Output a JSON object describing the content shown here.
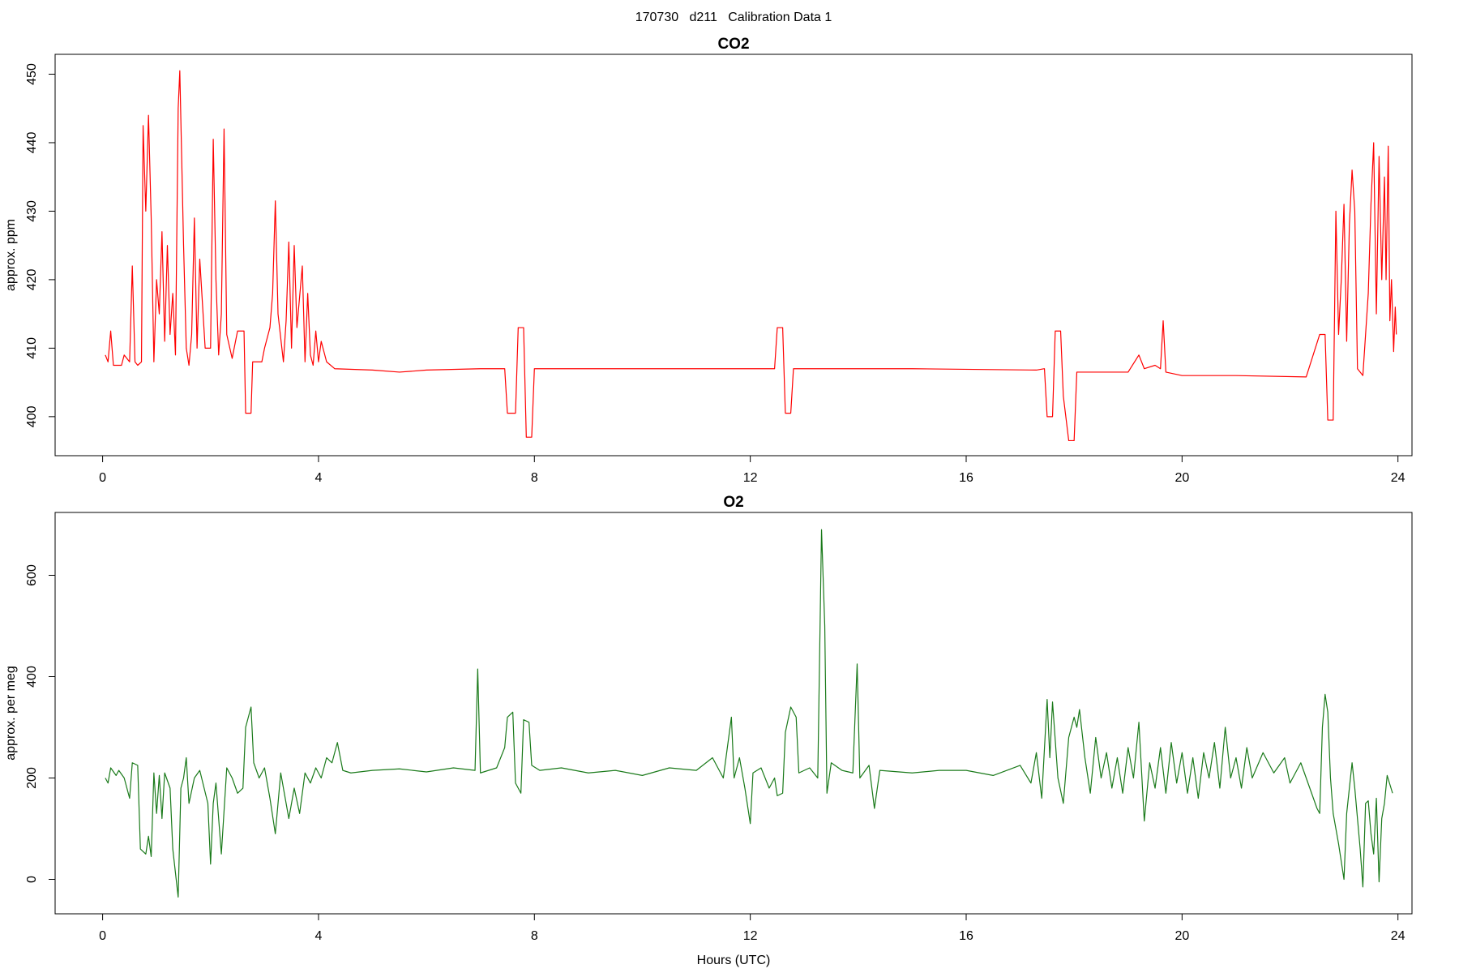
{
  "title": "170730   d211   Calibration Data 1",
  "chart_data": [
    {
      "type": "line",
      "title": "CO2",
      "ylabel": "approx. ppm",
      "color": "#ff0000",
      "xlim": [
        -0.88,
        24.26
      ],
      "xticks": [
        0,
        4,
        8,
        12,
        16,
        20,
        24
      ],
      "ylim": [
        394.3,
        452.9
      ],
      "yticks": [
        400,
        410,
        420,
        430,
        440,
        450
      ],
      "x": [
        0.05,
        0.1,
        0.15,
        0.2,
        0.35,
        0.4,
        0.5,
        0.55,
        0.6,
        0.65,
        0.72,
        0.75,
        0.8,
        0.85,
        0.9,
        0.95,
        1.0,
        1.05,
        1.1,
        1.15,
        1.2,
        1.25,
        1.3,
        1.35,
        1.4,
        1.43,
        1.5,
        1.55,
        1.6,
        1.65,
        1.7,
        1.75,
        1.8,
        1.9,
        2.0,
        2.05,
        2.1,
        2.15,
        2.2,
        2.25,
        2.3,
        2.4,
        2.5,
        2.62,
        2.65,
        2.75,
        2.78,
        2.95,
        3.0,
        3.1,
        3.15,
        3.2,
        3.25,
        3.35,
        3.4,
        3.45,
        3.5,
        3.55,
        3.6,
        3.7,
        3.75,
        3.8,
        3.85,
        3.9,
        3.95,
        4.0,
        4.05,
        4.15,
        4.3,
        5.0,
        5.5,
        6.0,
        7.0,
        7.45,
        7.5,
        7.65,
        7.7,
        7.8,
        7.85,
        7.95,
        8.0,
        10,
        12.45,
        12.5,
        12.6,
        12.65,
        12.75,
        12.8,
        15,
        17.3,
        17.45,
        17.5,
        17.6,
        17.65,
        17.75,
        17.8,
        17.9,
        18.0,
        18.05,
        19.0,
        19.2,
        19.3,
        19.5,
        19.6,
        19.65,
        19.7,
        20,
        21,
        22.3,
        22.55,
        22.65,
        22.7,
        22.8,
        22.85,
        22.9,
        22.95,
        23.0,
        23.05,
        23.1,
        23.15,
        23.2,
        23.25,
        23.35,
        23.45,
        23.5,
        23.55,
        23.6,
        23.65,
        23.7,
        23.75,
        23.78,
        23.82,
        23.85,
        23.88,
        23.92,
        23.95,
        23.97
      ],
      "values": [
        409,
        408,
        412.5,
        407.5,
        407.5,
        409,
        408,
        422,
        408,
        407.5,
        408,
        442.5,
        430,
        444,
        429,
        408,
        420,
        415,
        427,
        411,
        425,
        412,
        418,
        409,
        445,
        450.5,
        425,
        410,
        407.5,
        412,
        429,
        410,
        423,
        410,
        410,
        440.5,
        420,
        409,
        415,
        442,
        412,
        408.5,
        412.5,
        412.5,
        400.5,
        400.5,
        408,
        408,
        410,
        413,
        418,
        431.5,
        415,
        408,
        414,
        425.5,
        410,
        425,
        413,
        422,
        408,
        418,
        409,
        407.5,
        412.5,
        408,
        411,
        408,
        407,
        406.8,
        406.5,
        406.8,
        407,
        407,
        400.5,
        400.5,
        413,
        413,
        397,
        397,
        407,
        407,
        407,
        413,
        413,
        400.5,
        400.5,
        407,
        407,
        406.8,
        407,
        400,
        400,
        412.5,
        412.5,
        403,
        396.5,
        396.5,
        406.5,
        406.5,
        409,
        407,
        407.5,
        407,
        414,
        406.5,
        406,
        406,
        405.8,
        412,
        412,
        399.5,
        399.5,
        430,
        412,
        420,
        431,
        411,
        428,
        436,
        430,
        407,
        406,
        418,
        431,
        440,
        415,
        438,
        420,
        435,
        420,
        439.5,
        414,
        420,
        409.5,
        416,
        412
      ]
    },
    {
      "type": "line",
      "title": "O2",
      "ylabel": "approx. per meg",
      "xlabel": "Hours (UTC)",
      "color": "#1a7a1a",
      "xlim": [
        -0.88,
        24.26
      ],
      "xticks": [
        0,
        4,
        8,
        12,
        16,
        20,
        24
      ],
      "ylim": [
        -68,
        724
      ],
      "yticks": [
        0,
        200,
        400,
        600
      ],
      "x": [
        0.05,
        0.1,
        0.15,
        0.25,
        0.3,
        0.4,
        0.5,
        0.55,
        0.65,
        0.7,
        0.8,
        0.85,
        0.9,
        0.95,
        1.0,
        1.05,
        1.1,
        1.15,
        1.25,
        1.3,
        1.4,
        1.45,
        1.5,
        1.55,
        1.6,
        1.7,
        1.8,
        1.95,
        2.0,
        2.05,
        2.1,
        2.2,
        2.3,
        2.4,
        2.5,
        2.6,
        2.65,
        2.7,
        2.75,
        2.8,
        2.9,
        3.0,
        3.1,
        3.2,
        3.3,
        3.4,
        3.45,
        3.55,
        3.65,
        3.75,
        3.85,
        3.95,
        4.05,
        4.15,
        4.25,
        4.35,
        4.45,
        4.6,
        5,
        5.5,
        6,
        6.5,
        6.9,
        6.95,
        7.0,
        7.3,
        7.45,
        7.5,
        7.6,
        7.65,
        7.75,
        7.8,
        7.9,
        7.95,
        8.1,
        8.5,
        9,
        9.5,
        10,
        10.5,
        11,
        11.3,
        11.5,
        11.65,
        11.7,
        11.8,
        11.9,
        12.0,
        12.05,
        12.2,
        12.35,
        12.45,
        12.5,
        12.6,
        12.65,
        12.75,
        12.85,
        12.9,
        13.1,
        13.25,
        13.32,
        13.38,
        13.42,
        13.5,
        13.7,
        13.9,
        13.98,
        14.03,
        14.2,
        14.3,
        14.4,
        15,
        15.5,
        16,
        16.5,
        17.0,
        17.2,
        17.3,
        17.4,
        17.5,
        17.55,
        17.6,
        17.7,
        17.8,
        17.9,
        18.0,
        18.05,
        18.1,
        18.2,
        18.3,
        18.4,
        18.5,
        18.6,
        18.7,
        18.8,
        18.9,
        19.0,
        19.1,
        19.2,
        19.3,
        19.4,
        19.5,
        19.6,
        19.7,
        19.8,
        19.9,
        20.0,
        20.1,
        20.2,
        20.3,
        20.4,
        20.5,
        20.6,
        20.7,
        20.8,
        20.9,
        21.0,
        21.1,
        21.2,
        21.3,
        21.5,
        21.7,
        21.9,
        22.0,
        22.2,
        22.3,
        22.4,
        22.5,
        22.55,
        22.6,
        22.65,
        22.7,
        22.75,
        22.8,
        22.9,
        23.0,
        23.05,
        23.15,
        23.2,
        23.3,
        23.35,
        23.4,
        23.45,
        23.5,
        23.55,
        23.6,
        23.65,
        23.7,
        23.75,
        23.8,
        23.9
      ],
      "values": [
        200,
        190,
        220,
        205,
        215,
        200,
        160,
        230,
        225,
        60,
        50,
        85,
        45,
        210,
        130,
        205,
        120,
        210,
        180,
        60,
        -35,
        180,
        200,
        240,
        150,
        200,
        215,
        150,
        30,
        150,
        190,
        50,
        220,
        200,
        170,
        180,
        300,
        320,
        340,
        230,
        200,
        220,
        160,
        90,
        210,
        150,
        120,
        180,
        130,
        210,
        190,
        220,
        200,
        240,
        230,
        270,
        215,
        210,
        215,
        218,
        212,
        220,
        215,
        415,
        210,
        220,
        260,
        320,
        330,
        190,
        170,
        315,
        310,
        225,
        215,
        220,
        210,
        215,
        205,
        220,
        215,
        240,
        200,
        320,
        200,
        240,
        180,
        110,
        210,
        220,
        180,
        200,
        165,
        170,
        290,
        340,
        320,
        210,
        220,
        200,
        690,
        500,
        170,
        230,
        215,
        210,
        425,
        200,
        225,
        140,
        215,
        210,
        215,
        215,
        205,
        225,
        190,
        250,
        160,
        355,
        240,
        350,
        200,
        150,
        280,
        320,
        300,
        335,
        240,
        170,
        280,
        200,
        250,
        180,
        240,
        170,
        260,
        200,
        310,
        115,
        230,
        180,
        260,
        170,
        270,
        190,
        250,
        170,
        240,
        160,
        250,
        200,
        270,
        180,
        300,
        200,
        240,
        180,
        260,
        200,
        250,
        210,
        240,
        190,
        230,
        200,
        170,
        140,
        130,
        300,
        365,
        330,
        200,
        130,
        70,
        0,
        130,
        230,
        180,
        60,
        -15,
        150,
        155,
        90,
        50,
        160,
        -5,
        120,
        150,
        205,
        170
      ]
    }
  ]
}
